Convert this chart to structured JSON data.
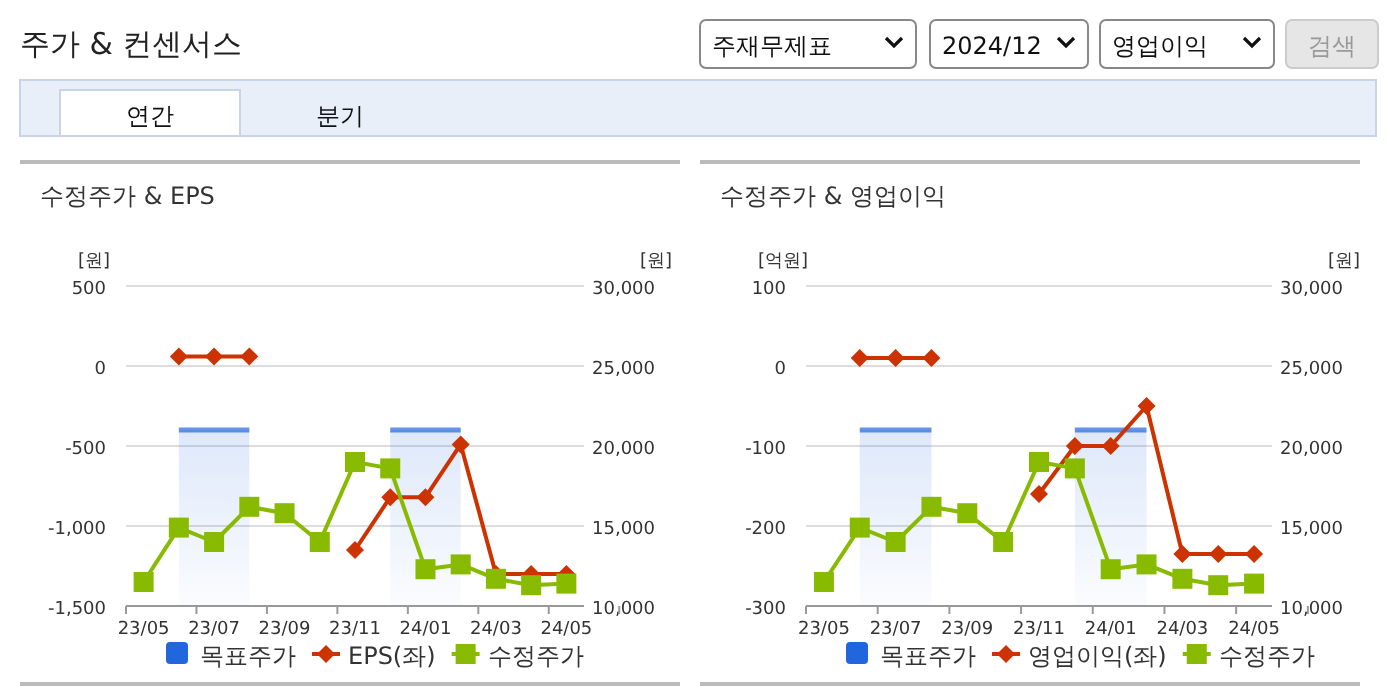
{
  "chart_data": [
    {
      "type": "other",
      "title": "주가 & 컨센서스",
      "annotations": [
        "주재무제표",
        "2024/12",
        "영업이익",
        "검색",
        "연간",
        "분기"
      ]
    },
    {
      "type": "line",
      "title": "수정주가 & EPS",
      "categories": [
        "23/05",
        null,
        "23/07",
        null,
        "23/09",
        null,
        "23/11",
        null,
        "24/01",
        null,
        "24/03",
        null,
        "24/05"
      ],
      "series": [
        {
          "name": "목표주가",
          "type": "area",
          "color": "#2266dd",
          "axis": "y2",
          "values": [
            null,
            21000,
            21000,
            21000,
            null,
            null,
            null,
            21000,
            21000,
            21000,
            null,
            null,
            null
          ]
        },
        {
          "name": "EPS(좌)",
          "type": "line",
          "color": "#cc3300",
          "marker": "diamond",
          "values": [
            null,
            60,
            60,
            60,
            null,
            null,
            -1150,
            -820,
            -820,
            -490,
            -1300,
            -1300,
            -1300
          ]
        },
        {
          "name": "수정주가",
          "type": "line",
          "color": "#88bb00",
          "marker": "square",
          "axis": "y2",
          "values": [
            11500,
            14900,
            14000,
            16200,
            15800,
            14000,
            19000,
            18600,
            12300,
            12600,
            11700,
            11300,
            11400
          ]
        }
      ],
      "ylabel": "[원]",
      "y2label": "[원]",
      "ylim": [
        -1500,
        500
      ],
      "yticks": [
        {
          "value": -1500,
          "label": "-1,500"
        },
        {
          "value": -1000,
          "label": "-1,000"
        },
        -500,
        0,
        500
      ],
      "y2lim": [
        10000,
        30000
      ],
      "y2ticks": [
        {
          "value": 10000,
          "label": "10,000"
        },
        {
          "value": 15000,
          "label": "15,000"
        },
        {
          "value": 20000,
          "label": "20,000"
        },
        {
          "value": 25000,
          "label": "25,000"
        },
        {
          "value": 30000,
          "label": "30,000"
        }
      ],
      "grid": "y",
      "legend": "bottom"
    },
    {
      "type": "line",
      "title": "수정주가 & 영업이익",
      "categories": [
        "23/05",
        null,
        "23/07",
        null,
        "23/09",
        null,
        "23/11",
        null,
        "24/01",
        null,
        "24/03",
        null,
        "24/05"
      ],
      "series": [
        {
          "name": "목표주가",
          "type": "area",
          "color": "#2266dd",
          "axis": "y2",
          "values": [
            null,
            21000,
            21000,
            21000,
            null,
            null,
            null,
            21000,
            21000,
            21000,
            null,
            null,
            null
          ]
        },
        {
          "name": "영업이익(좌)",
          "type": "line",
          "color": "#cc3300",
          "marker": "diamond",
          "values": [
            null,
            10,
            10,
            10,
            null,
            null,
            -160,
            -100,
            -100,
            -50,
            -235,
            -235,
            -235
          ]
        },
        {
          "name": "수정주가",
          "type": "line",
          "color": "#88bb00",
          "marker": "square",
          "axis": "y2",
          "values": [
            11500,
            14900,
            14000,
            16200,
            15800,
            14000,
            19000,
            18600,
            12300,
            12600,
            11700,
            11300,
            11400
          ]
        }
      ],
      "ylabel": "[억원]",
      "y2label": "[원]",
      "ylim": [
        -300,
        100
      ],
      "yticks": [
        -300,
        -200,
        -100,
        0,
        100
      ],
      "y2lim": [
        10000,
        30000
      ],
      "y2ticks": [
        {
          "value": 10000,
          "label": "10,000"
        },
        {
          "value": 15000,
          "label": "15,000"
        },
        {
          "value": 20000,
          "label": "20,000"
        },
        {
          "value": 25000,
          "label": "25,000"
        },
        {
          "value": 30000,
          "label": "30,000"
        }
      ],
      "grid": "y",
      "legend": "bottom"
    }
  ]
}
